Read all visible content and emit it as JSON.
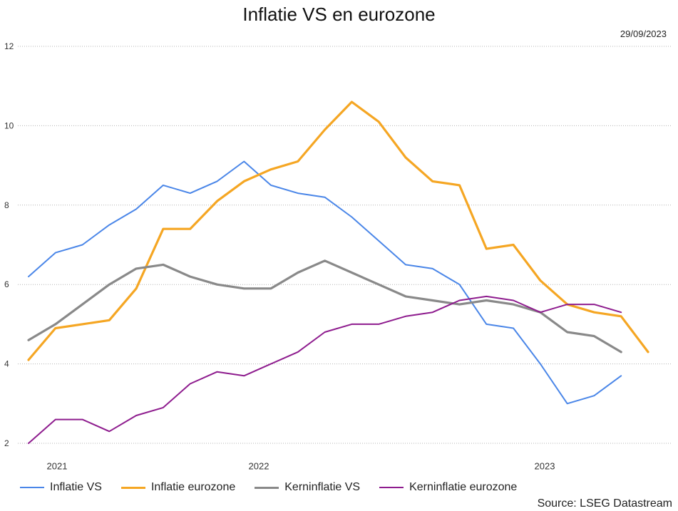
{
  "chart_data": {
    "type": "line",
    "title": "Inflatie VS en eurozone",
    "date_label": "29/09/2023",
    "source": "Source: LSEG Datastream",
    "x": [
      "2021-10",
      "2021-11",
      "2021-12",
      "2022-01",
      "2022-02",
      "2022-03",
      "2022-04",
      "2022-05",
      "2022-06",
      "2022-07",
      "2022-08",
      "2022-09",
      "2022-10",
      "2022-11",
      "2022-12",
      "2023-01",
      "2023-02",
      "2023-03",
      "2023-04",
      "2023-05",
      "2023-06",
      "2023-07",
      "2023-08",
      "2023-09"
    ],
    "xticks": [
      "2021",
      "2022",
      "2023"
    ],
    "yticks": [
      2,
      4,
      6,
      8,
      10,
      12
    ],
    "ylim": [
      2,
      12
    ],
    "grid": true,
    "legend": "bottom",
    "series": [
      {
        "name": "Inflatie VS",
        "color": "#4a86e8",
        "values": [
          6.2,
          6.8,
          7.0,
          7.5,
          7.9,
          8.5,
          8.3,
          8.6,
          9.1,
          8.5,
          8.3,
          8.2,
          7.7,
          7.1,
          6.5,
          6.4,
          6.0,
          5.0,
          4.9,
          4.0,
          3.0,
          3.2,
          3.7,
          null
        ]
      },
      {
        "name": "Inflatie eurozone",
        "color": "#f5a623",
        "values": [
          4.1,
          4.9,
          5.0,
          5.1,
          5.9,
          7.4,
          7.4,
          8.1,
          8.6,
          8.9,
          9.1,
          9.9,
          10.6,
          10.1,
          9.2,
          8.6,
          8.5,
          6.9,
          7.0,
          6.1,
          5.5,
          5.3,
          5.2,
          4.3
        ]
      },
      {
        "name": "Kerninflatie VS",
        "color": "#898989",
        "values": [
          4.6,
          5.0,
          5.5,
          6.0,
          6.4,
          6.5,
          6.2,
          6.0,
          5.9,
          5.9,
          6.3,
          6.6,
          6.3,
          6.0,
          5.7,
          5.6,
          5.5,
          5.6,
          5.5,
          5.3,
          4.8,
          4.7,
          4.3,
          null
        ]
      },
      {
        "name": "Kerninflatie eurozone",
        "color": "#8e1c8e",
        "values": [
          2.0,
          2.6,
          2.6,
          2.3,
          2.7,
          2.9,
          3.5,
          3.8,
          3.7,
          4.0,
          4.3,
          4.8,
          5.0,
          5.0,
          5.2,
          5.3,
          5.6,
          5.7,
          5.6,
          5.3,
          5.5,
          5.5,
          5.3,
          null
        ]
      }
    ]
  }
}
